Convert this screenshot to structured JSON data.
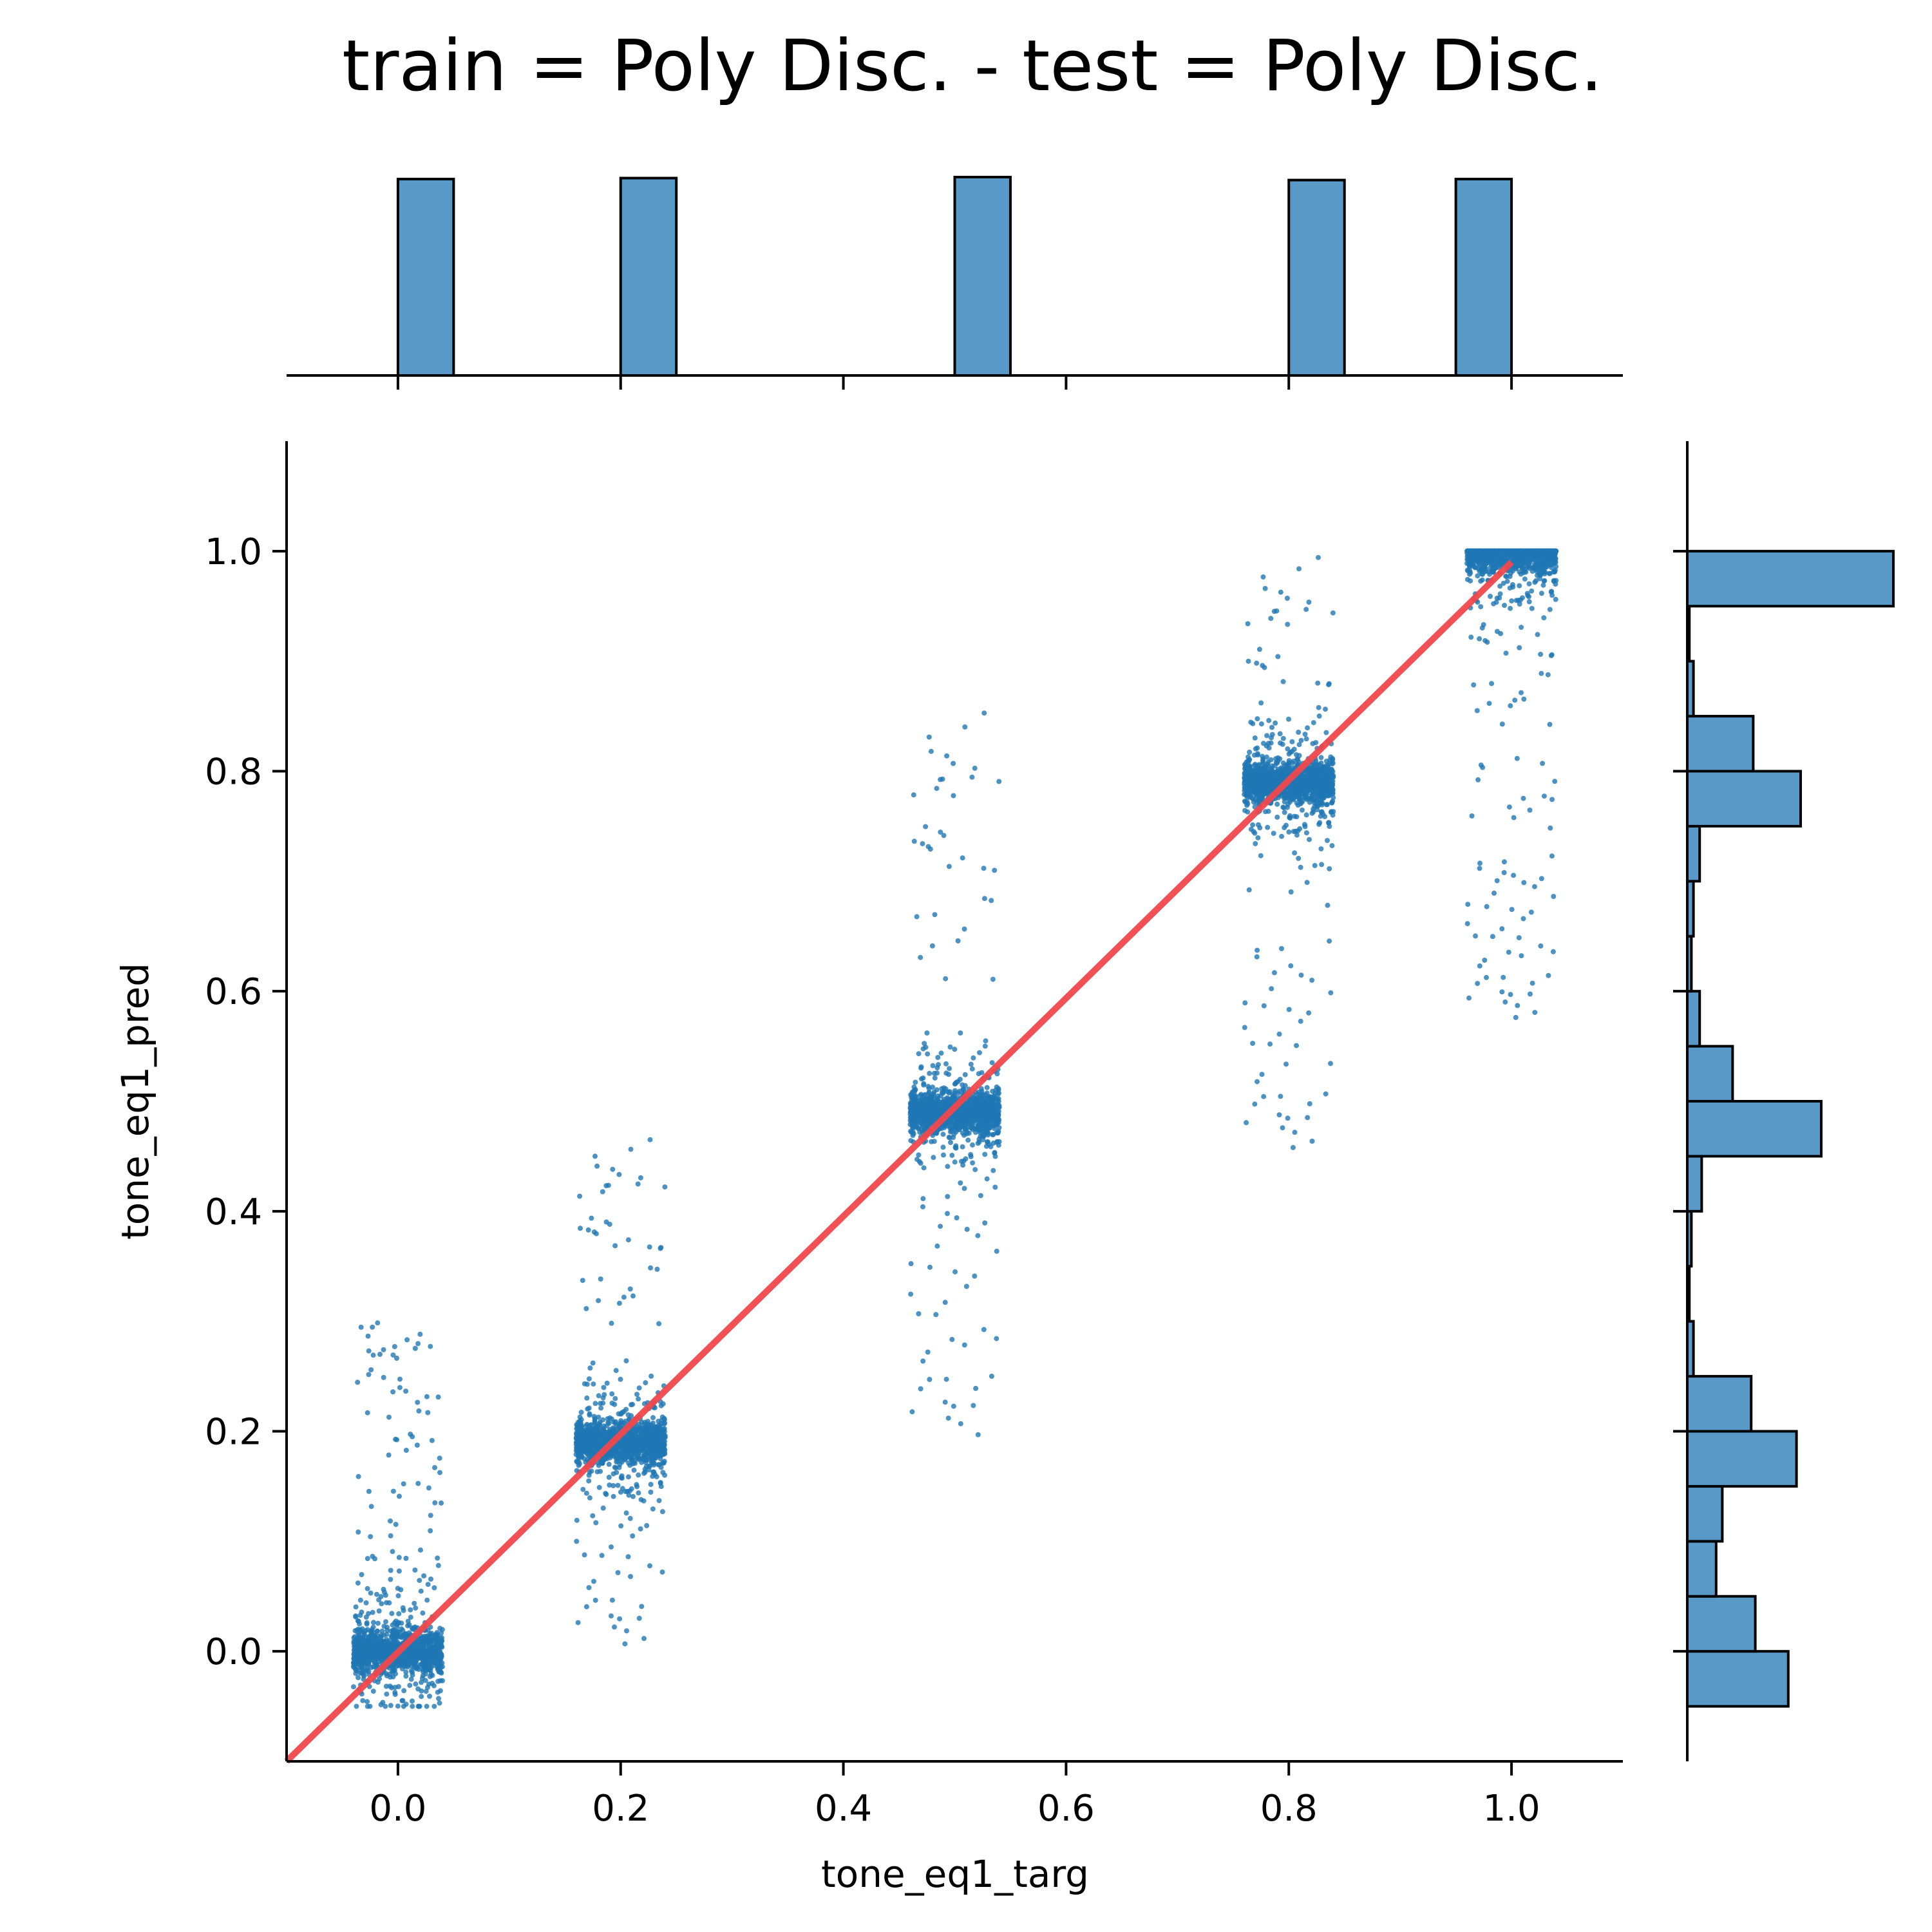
{
  "chart_data": {
    "type": "scatter",
    "title": "train = Poly Disc. - test = Poly Disc.",
    "xlabel": "tone_eq1_targ",
    "ylabel": "tone_eq1_pred",
    "xlim": [
      -0.1,
      1.1
    ],
    "ylim": [
      -0.1,
      1.1
    ],
    "xticks": [
      "0.0",
      "0.2",
      "0.4",
      "0.6",
      "0.8",
      "1.0"
    ],
    "yticks": [
      "0.0",
      "0.2",
      "0.4",
      "0.6",
      "0.8",
      "1.0"
    ],
    "grid": false,
    "point_color": "#1f77b4",
    "hist_color": "#5899c8",
    "reference_line": {
      "x": [
        -0.1,
        1.0
      ],
      "y": [
        -0.1,
        0.99
      ],
      "color": "#f0474c"
    },
    "clusters": [
      {
        "target": 0.0,
        "prediction_center": 0.0,
        "prediction_spread": [
          -0.05,
          0.31
        ]
      },
      {
        "target": 0.2,
        "prediction_center": 0.19,
        "prediction_spread": [
          0.0,
          0.47
        ]
      },
      {
        "target": 0.5,
        "prediction_center": 0.49,
        "prediction_spread": [
          0.18,
          0.86
        ]
      },
      {
        "target": 0.8,
        "prediction_center": 0.79,
        "prediction_spread": [
          0.45,
          1.0
        ]
      },
      {
        "target": 1.0,
        "prediction_center": 1.0,
        "prediction_spread": [
          0.57,
          1.0
        ]
      }
    ],
    "x_marginal_histogram": {
      "bins": [
        {
          "from": 0.0,
          "to": 0.05,
          "relative_count": 0.99
        },
        {
          "from": 0.2,
          "to": 0.25,
          "relative_count": 0.995
        },
        {
          "from": 0.5,
          "to": 0.55,
          "relative_count": 1.0
        },
        {
          "from": 0.8,
          "to": 0.85,
          "relative_count": 0.985
        },
        {
          "from": 0.95,
          "to": 1.0,
          "relative_count": 0.99
        }
      ]
    },
    "y_marginal_histogram": {
      "bins": [
        {
          "from": -0.05,
          "to": 0.0,
          "relative_count": 0.49
        },
        {
          "from": 0.0,
          "to": 0.05,
          "relative_count": 0.33
        },
        {
          "from": 0.05,
          "to": 0.1,
          "relative_count": 0.14
        },
        {
          "from": 0.1,
          "to": 0.15,
          "relative_count": 0.17
        },
        {
          "from": 0.15,
          "to": 0.2,
          "relative_count": 0.53
        },
        {
          "from": 0.2,
          "to": 0.25,
          "relative_count": 0.31
        },
        {
          "from": 0.25,
          "to": 0.3,
          "relative_count": 0.03
        },
        {
          "from": 0.3,
          "to": 0.35,
          "relative_count": 0.01
        },
        {
          "from": 0.35,
          "to": 0.4,
          "relative_count": 0.02
        },
        {
          "from": 0.4,
          "to": 0.45,
          "relative_count": 0.07
        },
        {
          "from": 0.45,
          "to": 0.5,
          "relative_count": 0.65
        },
        {
          "from": 0.5,
          "to": 0.55,
          "relative_count": 0.22
        },
        {
          "from": 0.55,
          "to": 0.6,
          "relative_count": 0.06
        },
        {
          "from": 0.6,
          "to": 0.65,
          "relative_count": 0.02
        },
        {
          "from": 0.65,
          "to": 0.7,
          "relative_count": 0.03
        },
        {
          "from": 0.7,
          "to": 0.75,
          "relative_count": 0.06
        },
        {
          "from": 0.75,
          "to": 0.8,
          "relative_count": 0.55
        },
        {
          "from": 0.8,
          "to": 0.85,
          "relative_count": 0.32
        },
        {
          "from": 0.85,
          "to": 0.9,
          "relative_count": 0.03
        },
        {
          "from": 0.9,
          "to": 0.95,
          "relative_count": 0.01
        },
        {
          "from": 0.95,
          "to": 1.0,
          "relative_count": 1.0
        }
      ]
    }
  }
}
